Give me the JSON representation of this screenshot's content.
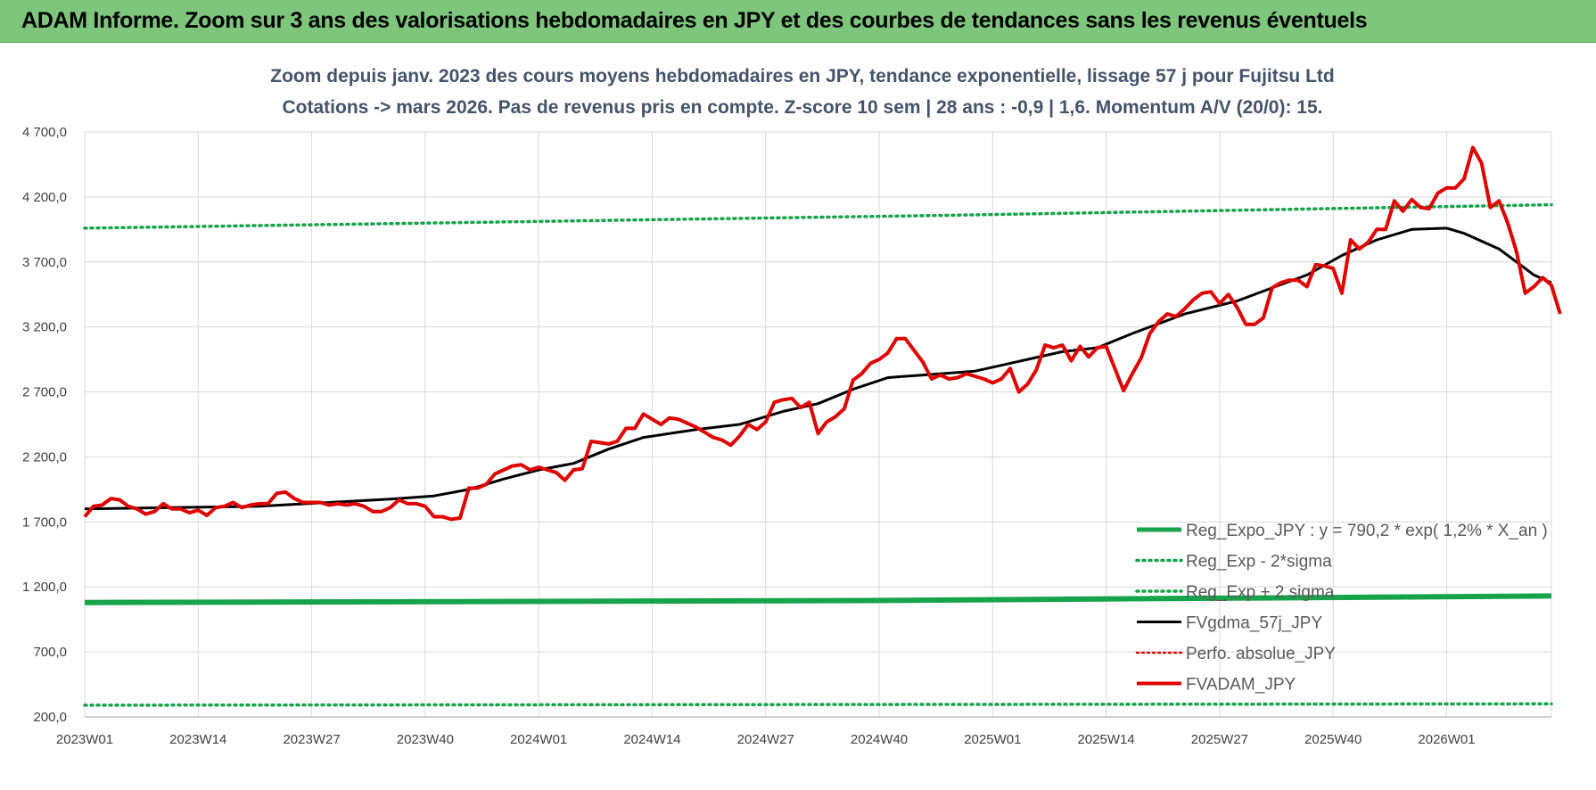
{
  "banner": {
    "title": "ADAM Informe. Zoom sur 3 ans des valorisations hebdomadaires en JPY et des courbes de tendances sans les revenus éventuels"
  },
  "colors": {
    "banner_bg": "#7dc67b",
    "reg_expo": "#16a34a",
    "sigma_bands": "#16a34a",
    "moving_average": "#000000",
    "perfo_absolue": "#e00000",
    "fvadam": "#e00000",
    "title_text": "#44546a"
  },
  "chart_data": {
    "type": "line",
    "title_lines": [
      "Zoom depuis janv. 2023 des cours moyens hebdomadaires en JPY, tendance exponentielle, lissage 57 j pour Fujitsu Ltd",
      "Cotations -> mars 2026. Pas de revenus pris en compte. Z-score 10 sem | 28 ans : -0,9 | 1,6. Momentum A/V (20/0): 15."
    ],
    "xlabel": "",
    "ylabel": "",
    "ylim": [
      200,
      4700
    ],
    "y_ticks": [
      200,
      700,
      1200,
      1700,
      2200,
      2700,
      3200,
      3700,
      4200,
      4700
    ],
    "y_tick_labels": [
      "200,0",
      "700,0",
      "1 200,0",
      "1 700,0",
      "2 200,0",
      "2 700,0",
      "3 200,0",
      "3 700,0",
      "4 200,0",
      "4 700,0"
    ],
    "x_tick_labels": [
      "2023W01",
      "2023W14",
      "2023W27",
      "2023W40",
      "2024W01",
      "2024W14",
      "2024W27",
      "2024W40",
      "2025W01",
      "2025W14",
      "2025W27",
      "2025W40",
      "2026W01"
    ],
    "x_tick_interval_weeks": 13,
    "n_weeks": 168,
    "grid": true,
    "legend_position": "bottom-right",
    "series": [
      {
        "name": "Reg_Expo_JPY : y = 790,2 * exp( 1,2% *  X_an )",
        "style": "solid-thick",
        "points": [
          [
            0,
            1080
          ],
          [
            30,
            1085
          ],
          [
            90,
            1095
          ],
          [
            168,
            1130
          ]
        ]
      },
      {
        "name": "Reg_Exp - 2*sigma",
        "style": "dotted",
        "points": [
          [
            0,
            290
          ],
          [
            168,
            300
          ]
        ]
      },
      {
        "name": "Reg_Exp + 2 sigma",
        "style": "dotted",
        "points": [
          [
            0,
            3960
          ],
          [
            50,
            4010
          ],
          [
            100,
            4060
          ],
          [
            168,
            4140
          ]
        ]
      },
      {
        "name": "FVgdma_57j_JPY",
        "style": "solid",
        "points": [
          [
            0,
            1800
          ],
          [
            10,
            1810
          ],
          [
            20,
            1820
          ],
          [
            28,
            1850
          ],
          [
            35,
            1875
          ],
          [
            40,
            1900
          ],
          [
            44,
            1950
          ],
          [
            48,
            2030
          ],
          [
            52,
            2100
          ],
          [
            56,
            2150
          ],
          [
            60,
            2260
          ],
          [
            64,
            2350
          ],
          [
            70,
            2410
          ],
          [
            75,
            2450
          ],
          [
            80,
            2550
          ],
          [
            84,
            2610
          ],
          [
            88,
            2720
          ],
          [
            92,
            2810
          ],
          [
            96,
            2830
          ],
          [
            102,
            2860
          ],
          [
            108,
            2950
          ],
          [
            112,
            3010
          ],
          [
            116,
            3040
          ],
          [
            120,
            3150
          ],
          [
            126,
            3300
          ],
          [
            132,
            3400
          ],
          [
            136,
            3500
          ],
          [
            140,
            3600
          ],
          [
            144,
            3750
          ],
          [
            148,
            3870
          ],
          [
            152,
            3950
          ],
          [
            156,
            3960
          ],
          [
            158,
            3920
          ],
          [
            162,
            3800
          ],
          [
            166,
            3600
          ],
          [
            168,
            3540
          ]
        ]
      },
      {
        "name": "Perfo. absolue_JPY",
        "style": "dotted",
        "points": []
      },
      {
        "name": "FVADAM_JPY",
        "style": "solid-thick",
        "points": [
          [
            0,
            1740
          ],
          [
            1,
            1820
          ],
          [
            2,
            1830
          ],
          [
            3,
            1880
          ],
          [
            4,
            1870
          ],
          [
            5,
            1820
          ],
          [
            6,
            1800
          ],
          [
            7,
            1760
          ],
          [
            8,
            1780
          ],
          [
            9,
            1840
          ],
          [
            10,
            1800
          ],
          [
            11,
            1800
          ],
          [
            12,
            1770
          ],
          [
            13,
            1790
          ],
          [
            14,
            1750
          ],
          [
            15,
            1810
          ],
          [
            16,
            1820
          ],
          [
            17,
            1850
          ],
          [
            18,
            1810
          ],
          [
            19,
            1830
          ],
          [
            20,
            1840
          ],
          [
            21,
            1840
          ],
          [
            22,
            1920
          ],
          [
            23,
            1930
          ],
          [
            24,
            1880
          ],
          [
            25,
            1850
          ],
          [
            26,
            1850
          ],
          [
            27,
            1850
          ],
          [
            28,
            1830
          ],
          [
            29,
            1840
          ],
          [
            30,
            1830
          ],
          [
            31,
            1840
          ],
          [
            32,
            1820
          ],
          [
            33,
            1780
          ],
          [
            34,
            1780
          ],
          [
            35,
            1810
          ],
          [
            36,
            1870
          ],
          [
            37,
            1840
          ],
          [
            38,
            1840
          ],
          [
            39,
            1820
          ],
          [
            40,
            1740
          ],
          [
            41,
            1740
          ],
          [
            42,
            1720
          ],
          [
            43,
            1730
          ],
          [
            44,
            1960
          ],
          [
            45,
            1960
          ],
          [
            46,
            1990
          ],
          [
            47,
            2070
          ],
          [
            48,
            2100
          ],
          [
            49,
            2130
          ],
          [
            50,
            2140
          ],
          [
            51,
            2100
          ],
          [
            52,
            2120
          ],
          [
            53,
            2100
          ],
          [
            54,
            2080
          ],
          [
            55,
            2020
          ],
          [
            56,
            2100
          ],
          [
            57,
            2110
          ],
          [
            58,
            2320
          ],
          [
            59,
            2310
          ],
          [
            60,
            2300
          ],
          [
            61,
            2320
          ],
          [
            62,
            2420
          ],
          [
            63,
            2420
          ],
          [
            64,
            2530
          ],
          [
            65,
            2490
          ],
          [
            66,
            2450
          ],
          [
            67,
            2500
          ],
          [
            68,
            2490
          ],
          [
            69,
            2460
          ],
          [
            70,
            2430
          ],
          [
            71,
            2390
          ],
          [
            72,
            2350
          ],
          [
            73,
            2330
          ],
          [
            74,
            2290
          ],
          [
            75,
            2360
          ],
          [
            76,
            2450
          ],
          [
            77,
            2410
          ],
          [
            78,
            2470
          ],
          [
            79,
            2620
          ],
          [
            80,
            2640
          ],
          [
            81,
            2650
          ],
          [
            82,
            2580
          ],
          [
            83,
            2620
          ],
          [
            84,
            2380
          ],
          [
            85,
            2470
          ],
          [
            86,
            2510
          ],
          [
            87,
            2570
          ],
          [
            88,
            2790
          ],
          [
            89,
            2840
          ],
          [
            90,
            2920
          ],
          [
            91,
            2950
          ],
          [
            92,
            3000
          ],
          [
            93,
            3110
          ],
          [
            94,
            3110
          ],
          [
            95,
            3020
          ],
          [
            96,
            2930
          ],
          [
            97,
            2800
          ],
          [
            98,
            2830
          ],
          [
            99,
            2800
          ],
          [
            100,
            2810
          ],
          [
            101,
            2840
          ],
          [
            102,
            2820
          ],
          [
            103,
            2800
          ],
          [
            104,
            2770
          ],
          [
            105,
            2800
          ],
          [
            106,
            2880
          ],
          [
            107,
            2700
          ],
          [
            108,
            2760
          ],
          [
            109,
            2870
          ],
          [
            110,
            3060
          ],
          [
            111,
            3040
          ],
          [
            112,
            3060
          ],
          [
            113,
            2940
          ],
          [
            114,
            3050
          ],
          [
            115,
            2970
          ],
          [
            116,
            3040
          ],
          [
            117,
            3050
          ],
          [
            118,
            2880
          ],
          [
            119,
            2710
          ],
          [
            120,
            2840
          ],
          [
            121,
            2960
          ],
          [
            122,
            3150
          ],
          [
            123,
            3240
          ],
          [
            124,
            3300
          ],
          [
            125,
            3280
          ],
          [
            126,
            3340
          ],
          [
            127,
            3410
          ],
          [
            128,
            3460
          ],
          [
            129,
            3470
          ],
          [
            130,
            3380
          ],
          [
            131,
            3450
          ],
          [
            132,
            3350
          ],
          [
            133,
            3220
          ],
          [
            134,
            3220
          ],
          [
            135,
            3270
          ],
          [
            136,
            3500
          ],
          [
            137,
            3540
          ],
          [
            138,
            3560
          ],
          [
            139,
            3560
          ],
          [
            140,
            3510
          ],
          [
            141,
            3680
          ],
          [
            142,
            3670
          ],
          [
            143,
            3650
          ],
          [
            144,
            3460
          ],
          [
            145,
            3870
          ],
          [
            146,
            3800
          ],
          [
            147,
            3850
          ],
          [
            148,
            3950
          ],
          [
            149,
            3950
          ],
          [
            150,
            4170
          ],
          [
            151,
            4090
          ],
          [
            152,
            4180
          ],
          [
            153,
            4120
          ],
          [
            154,
            4110
          ],
          [
            155,
            4230
          ],
          [
            156,
            4270
          ],
          [
            157,
            4270
          ],
          [
            158,
            4340
          ],
          [
            159,
            4580
          ],
          [
            160,
            4460
          ],
          [
            161,
            4120
          ],
          [
            162,
            4170
          ],
          [
            163,
            4000
          ],
          [
            164,
            3780
          ],
          [
            165,
            3460
          ],
          [
            166,
            3510
          ],
          [
            167,
            3580
          ],
          [
            168,
            3520
          ],
          [
            169,
            3300
          ]
        ]
      }
    ]
  }
}
